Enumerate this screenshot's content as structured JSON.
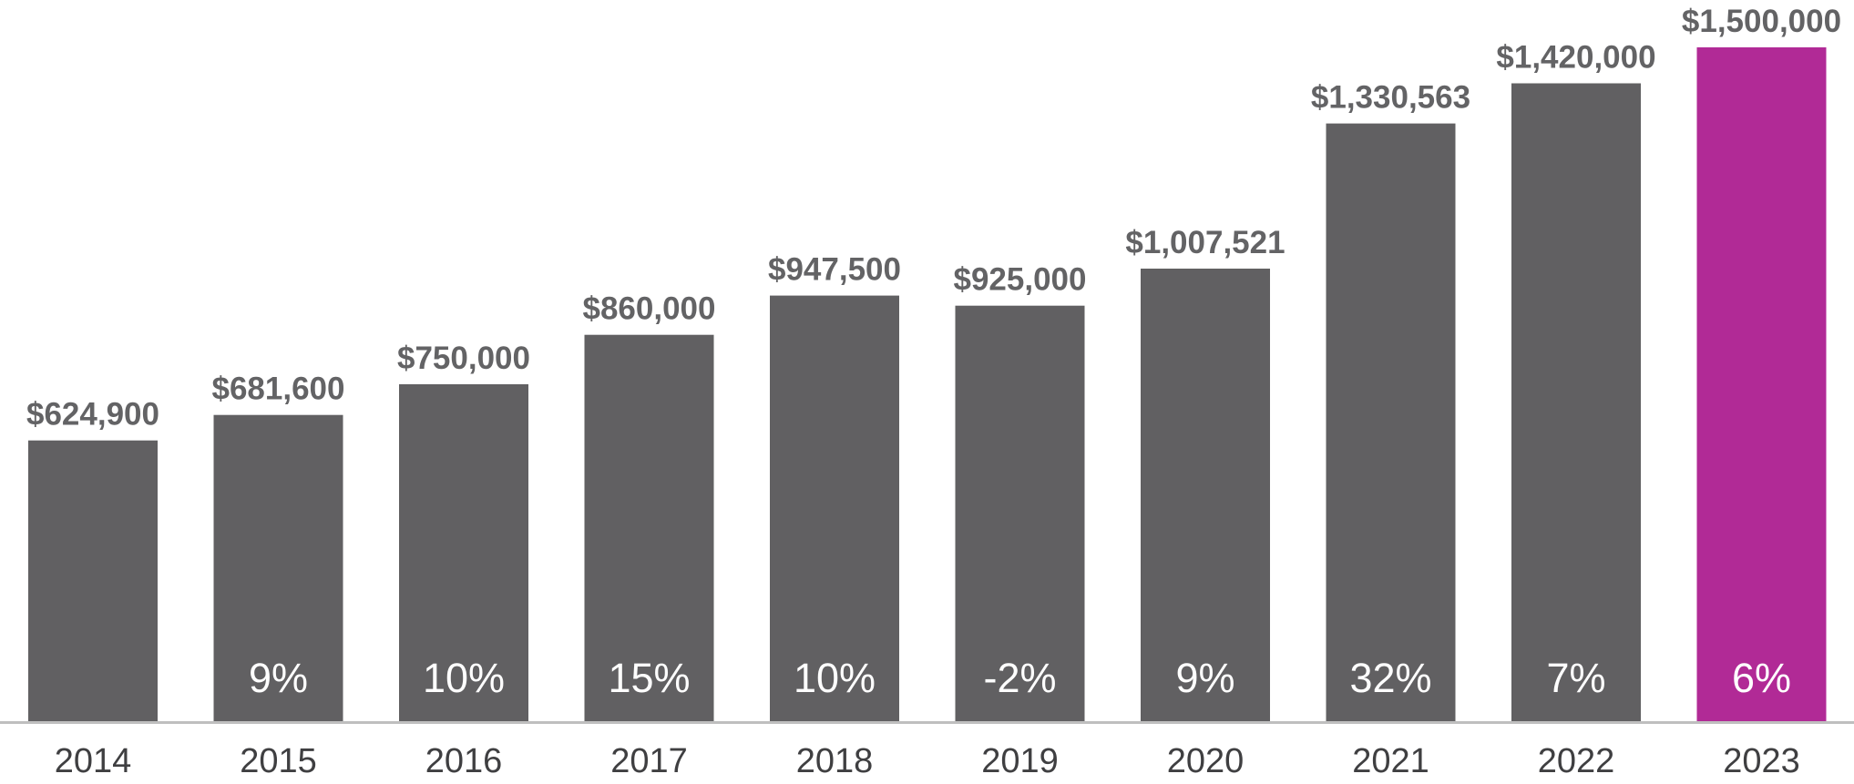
{
  "chart_data": {
    "type": "bar",
    "title": "",
    "xlabel": "",
    "ylabel": "",
    "ylim": [
      0,
      1500000
    ],
    "grid": false,
    "categories": [
      "2014",
      "2015",
      "2016",
      "2017",
      "2018",
      "2019",
      "2020",
      "2021",
      "2022",
      "2023"
    ],
    "values": [
      624900,
      681600,
      750000,
      860000,
      947500,
      925000,
      1007521,
      1330563,
      1420000,
      1500000
    ],
    "value_labels": [
      "$624,900",
      "$681,600",
      "$750,000",
      "$860,000",
      "$947,500",
      "$925,000",
      "$1,007,521",
      "$1,330,563",
      "$1,420,000",
      "$1,500,000"
    ],
    "change_labels": [
      "",
      "9%",
      "10%",
      "15%",
      "10%",
      "-2%",
      "9%",
      "32%",
      "7%",
      "6%"
    ],
    "colors": {
      "bar": "#616062",
      "highlight_bar": "#b12a96",
      "value_text": "#636365",
      "change_text": "#ffffff",
      "year_text": "#3f3f41",
      "axis": "#bfbfbf"
    },
    "highlight_index": 9
  }
}
